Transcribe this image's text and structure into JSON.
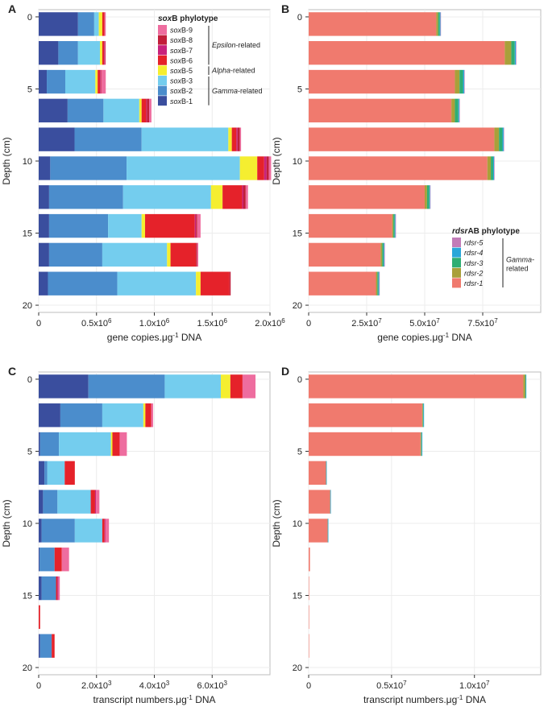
{
  "colors": {
    "soxB-1": "#3a4e9e",
    "soxB-2": "#4b8dcc",
    "soxB-3": "#74cdee",
    "soxB-5": "#f5ee30",
    "soxB-6": "#e5222a",
    "soxB-7": "#c8237c",
    "soxB-8": "#c21e3a",
    "soxB-9": "#ee6d9f",
    "rdsr-1": "#f07a6e",
    "rdsr-2": "#a9a03a",
    "rdsr-3": "#2fae73",
    "rdsr-4": "#29a7d9",
    "rdsr-5": "#c27cb8"
  },
  "chart_data": [
    {
      "panel": "A",
      "type": "bar",
      "orientation": "horizontal",
      "stacked": true,
      "xlabel_pre": "gene copies.μg",
      "xlabel_sup": "-1",
      "xlabel_post": " DNA",
      "ylabel": "Depth  (cm)",
      "xlim": [
        0,
        2000000
      ],
      "xticks": [
        0,
        500000,
        1000000,
        1500000,
        2000000
      ],
      "xtick_labels": [
        {
          "base": "0",
          "exp": ""
        },
        {
          "base": "0.5x10",
          "exp": "6"
        },
        {
          "base": "1.0x10",
          "exp": "6"
        },
        {
          "base": "1.5x10",
          "exp": "6"
        },
        {
          "base": "2.0x10",
          "exp": "6"
        }
      ],
      "ylim": [
        -0.5,
        20.5
      ],
      "yticks": [
        0,
        5,
        10,
        15,
        20
      ],
      "depths": [
        0.5,
        2.5,
        4.5,
        6.5,
        8.5,
        10.5,
        12.5,
        14.5,
        16.5,
        18.5
      ],
      "series": [
        {
          "name": "soxB-1",
          "values": [
            340000,
            170000,
            70000,
            250000,
            310000,
            100000,
            90000,
            90000,
            90000,
            80000
          ]
        },
        {
          "name": "soxB-2",
          "values": [
            140000,
            170000,
            160000,
            310000,
            580000,
            660000,
            640000,
            510000,
            460000,
            600000
          ]
        },
        {
          "name": "soxB-3",
          "values": [
            40000,
            190000,
            260000,
            310000,
            750000,
            980000,
            760000,
            290000,
            560000,
            680000
          ]
        },
        {
          "name": "soxB-5",
          "values": [
            30000,
            20000,
            20000,
            20000,
            30000,
            150000,
            100000,
            30000,
            30000,
            40000
          ]
        },
        {
          "name": "soxB-6",
          "values": [
            20000,
            15000,
            20000,
            40000,
            40000,
            60000,
            170000,
            430000,
            220000,
            250000
          ]
        },
        {
          "name": "soxB-7",
          "values": [
            0,
            5000,
            5000,
            5000,
            10000,
            20000,
            10000,
            10000,
            0,
            0
          ]
        },
        {
          "name": "soxB-8",
          "values": [
            0,
            5000,
            5000,
            20000,
            20000,
            20000,
            20000,
            10000,
            10000,
            10000
          ]
        },
        {
          "name": "soxB-9",
          "values": [
            10000,
            5000,
            40000,
            20000,
            10000,
            20000,
            20000,
            30000,
            10000,
            0
          ]
        }
      ],
      "legend": {
        "title_bold": "sox",
        "title_rest": "B phylotype",
        "position": "top-right",
        "items": [
          "soxB-9",
          "soxB-8",
          "soxB-7",
          "soxB-6",
          "soxB-5",
          "soxB-3",
          "soxB-2",
          "soxB-1"
        ],
        "item_labels": [
          "soxB-9",
          "soxB-8",
          "soxB-7",
          "soxB-6",
          "soxB-5",
          "soxB-3",
          "soxB-2",
          "soxB-1"
        ],
        "groups": [
          {
            "it": "Epsilon",
            "rest": "-related",
            "members": [
              0,
              3
            ]
          },
          {
            "it": "Alpha",
            "rest": "-related",
            "members": [
              4,
              4
            ]
          },
          {
            "it": "Gamma",
            "rest": "-related",
            "members": [
              5,
              7
            ]
          }
        ]
      }
    },
    {
      "panel": "B",
      "type": "bar",
      "orientation": "horizontal",
      "stacked": true,
      "xlabel_pre": "gene copies.μg",
      "xlabel_sup": "-1",
      "xlabel_post": " DNA",
      "ylabel": "Depth  (cm)",
      "xlim": [
        0,
        100000000
      ],
      "xticks": [
        0,
        25000000,
        50000000,
        75000000
      ],
      "xtick_labels": [
        {
          "base": "0",
          "exp": ""
        },
        {
          "base": "2.5x10",
          "exp": "7"
        },
        {
          "base": "5.0x10",
          "exp": "7"
        },
        {
          "base": "7.5x10",
          "exp": "7"
        }
      ],
      "ylim": [
        -0.5,
        20.5
      ],
      "yticks": [
        0,
        5,
        10,
        15,
        20
      ],
      "depths": [
        0.5,
        2.5,
        4.5,
        6.5,
        8.5,
        10.5,
        12.5,
        14.5,
        16.5,
        18.5
      ],
      "series": [
        {
          "name": "rdsr-1",
          "values": [
            55000000,
            84500000,
            63000000,
            61500000,
            80000000,
            77000000,
            50000000,
            36000000,
            31000000,
            29000000
          ]
        },
        {
          "name": "rdsr-2",
          "values": [
            800000,
            2800000,
            2000000,
            1500000,
            2000000,
            1500000,
            1000000,
            500000,
            700000,
            600000
          ]
        },
        {
          "name": "rdsr-3",
          "values": [
            700000,
            1500000,
            1500000,
            1500000,
            1500000,
            1000000,
            1000000,
            600000,
            600000,
            500000
          ]
        },
        {
          "name": "rdsr-4",
          "values": [
            300000,
            500000,
            500000,
            400000,
            500000,
            400000,
            300000,
            300000,
            300000,
            300000
          ]
        },
        {
          "name": "rdsr-5",
          "values": [
            200000,
            200000,
            200000,
            200000,
            200000,
            100000,
            100000,
            100000,
            100000,
            100000
          ]
        }
      ],
      "legend": {
        "title_bold": "rdsr",
        "title_rest": "AB phylotype",
        "position": "bottom-right",
        "items": [
          "rdsr-5",
          "rdsr-4",
          "rdsr-3",
          "rdsr-2",
          "rdsr-1"
        ],
        "item_labels": [
          "rdsr-5",
          "rdsr-4",
          "rdsr-3",
          "rdsr-2",
          "rdsr-1"
        ],
        "groups": [
          {
            "it": "Gamma-",
            "rest": "",
            "line2": "related",
            "members": [
              0,
              4
            ]
          }
        ]
      }
    },
    {
      "panel": "C",
      "type": "bar",
      "orientation": "horizontal",
      "stacked": true,
      "xlabel_pre": "transcript numbers.μg",
      "xlabel_sup": "-1",
      "xlabel_post": " DNA",
      "ylabel": "Depth  (cm)",
      "xlim": [
        0,
        8000
      ],
      "xticks": [
        0,
        2000,
        4000,
        6000
      ],
      "xtick_labels": [
        {
          "base": "0",
          "exp": ""
        },
        {
          "base": "2.0x10",
          "exp": "3"
        },
        {
          "base": "4.0x10",
          "exp": "3"
        },
        {
          "base": "6.0x10",
          "exp": "3"
        }
      ],
      "ylim": [
        -0.5,
        20.5
      ],
      "yticks": [
        0,
        5,
        10,
        15,
        20
      ],
      "depths": [
        0.5,
        2.5,
        4.5,
        6.5,
        8.5,
        10.5,
        12.5,
        14.5,
        16.5,
        18.5
      ],
      "series": [
        {
          "name": "soxB-1",
          "values": [
            1720,
            750,
            50,
            200,
            150,
            100,
            30,
            100,
            0,
            50
          ]
        },
        {
          "name": "soxB-2",
          "values": [
            2640,
            1450,
            650,
            100,
            500,
            1150,
            520,
            500,
            0,
            400
          ]
        },
        {
          "name": "soxB-3",
          "values": [
            1940,
            1420,
            1800,
            600,
            1150,
            950,
            0,
            0,
            0,
            0
          ]
        },
        {
          "name": "soxB-5",
          "values": [
            330,
            70,
            50,
            0,
            0,
            0,
            0,
            0,
            0,
            0
          ]
        },
        {
          "name": "soxB-6",
          "values": [
            420,
            200,
            250,
            350,
            150,
            80,
            250,
            50,
            50,
            100
          ]
        },
        {
          "name": "soxB-7",
          "values": [
            0,
            0,
            0,
            0,
            30,
            30,
            0,
            30,
            0,
            0
          ]
        },
        {
          "name": "soxB-8",
          "values": [
            0,
            0,
            0,
            0,
            0,
            0,
            0,
            0,
            0,
            0
          ]
        },
        {
          "name": "soxB-9",
          "values": [
            450,
            70,
            250,
            0,
            120,
            120,
            250,
            50,
            0,
            0
          ]
        }
      ]
    },
    {
      "panel": "D",
      "type": "bar",
      "orientation": "horizontal",
      "stacked": true,
      "xlabel_pre": "transcript numbers.μg",
      "xlabel_sup": "-1",
      "xlabel_post": " DNA",
      "ylabel": "Depth  (cm)",
      "xlim": [
        0,
        14000000
      ],
      "xticks": [
        0,
        5000000,
        10000000
      ],
      "xtick_labels": [
        {
          "base": "0",
          "exp": ""
        },
        {
          "base": "0.5x10",
          "exp": "7"
        },
        {
          "base": "1.0x10",
          "exp": "7"
        }
      ],
      "ylim": [
        -0.5,
        20.5
      ],
      "yticks": [
        0,
        5,
        10,
        15,
        20
      ],
      "depths": [
        0.5,
        2.5,
        4.5,
        6.5,
        8.5,
        10.5,
        12.5,
        14.5,
        16.5,
        18.5
      ],
      "series": [
        {
          "name": "rdsr-1",
          "values": [
            12950000,
            6850000,
            6750000,
            1050000,
            1300000,
            1150000,
            80000,
            20000,
            20000,
            15000
          ]
        },
        {
          "name": "rdsr-2",
          "values": [
            120000,
            40000,
            40000,
            0,
            0,
            0,
            0,
            0,
            0,
            0
          ]
        },
        {
          "name": "rdsr-3",
          "values": [
            30000,
            30000,
            30000,
            10000,
            10000,
            10000,
            0,
            0,
            0,
            0
          ]
        },
        {
          "name": "rdsr-4",
          "values": [
            20000,
            40000,
            40000,
            10000,
            30000,
            10000,
            0,
            0,
            0,
            0
          ]
        },
        {
          "name": "rdsr-5",
          "values": [
            0,
            0,
            0,
            0,
            0,
            0,
            0,
            0,
            0,
            0
          ]
        }
      ]
    }
  ]
}
